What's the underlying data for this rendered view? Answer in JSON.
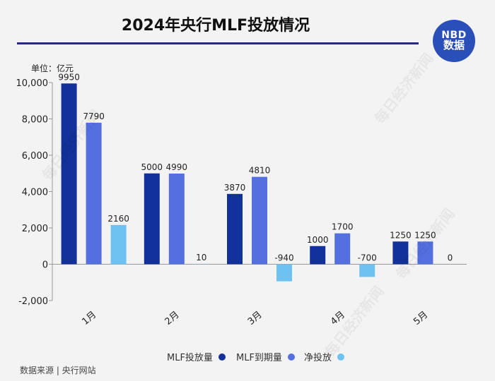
{
  "title": "2024年央行MLF投放情况",
  "logo": {
    "line1": "NBD",
    "line2": "数据"
  },
  "unit_label": "单位：亿元",
  "source": "数据来源 | 央行网站",
  "watermark": "每日经济新闻",
  "colors": {
    "mlf": "#12319a",
    "expire": "#5470e0",
    "net": "#6ec2f2",
    "accent": "#2a4fb8"
  },
  "chart_data": {
    "type": "bar",
    "categories": [
      "1月",
      "2月",
      "3月",
      "4月",
      "5月"
    ],
    "series": [
      {
        "name": "MLF投放量",
        "values": [
          9950,
          5000,
          3870,
          1000,
          1250
        ],
        "labels": [
          "9950",
          "5000",
          "3870",
          "1000",
          "1250"
        ]
      },
      {
        "name": "MLF到期量",
        "values": [
          7790,
          4990,
          4810,
          1700,
          1250
        ],
        "labels": [
          "7790",
          "4990",
          "4810",
          "1700",
          "1250"
        ]
      },
      {
        "name": "净投放",
        "values": [
          2160,
          10,
          -940,
          -700,
          0
        ],
        "labels": [
          "2160",
          "10",
          "-940",
          "-700",
          "0"
        ]
      }
    ],
    "ylim": [
      -2000,
      10000
    ],
    "yticks": [
      -2000,
      0,
      2000,
      4000,
      6000,
      8000,
      10000
    ],
    "ytick_labels": [
      "-2,000",
      "0",
      "2,000",
      "4,000",
      "6,000",
      "8,000",
      "10,000"
    ],
    "legend_position": "bottom",
    "grid": false
  }
}
